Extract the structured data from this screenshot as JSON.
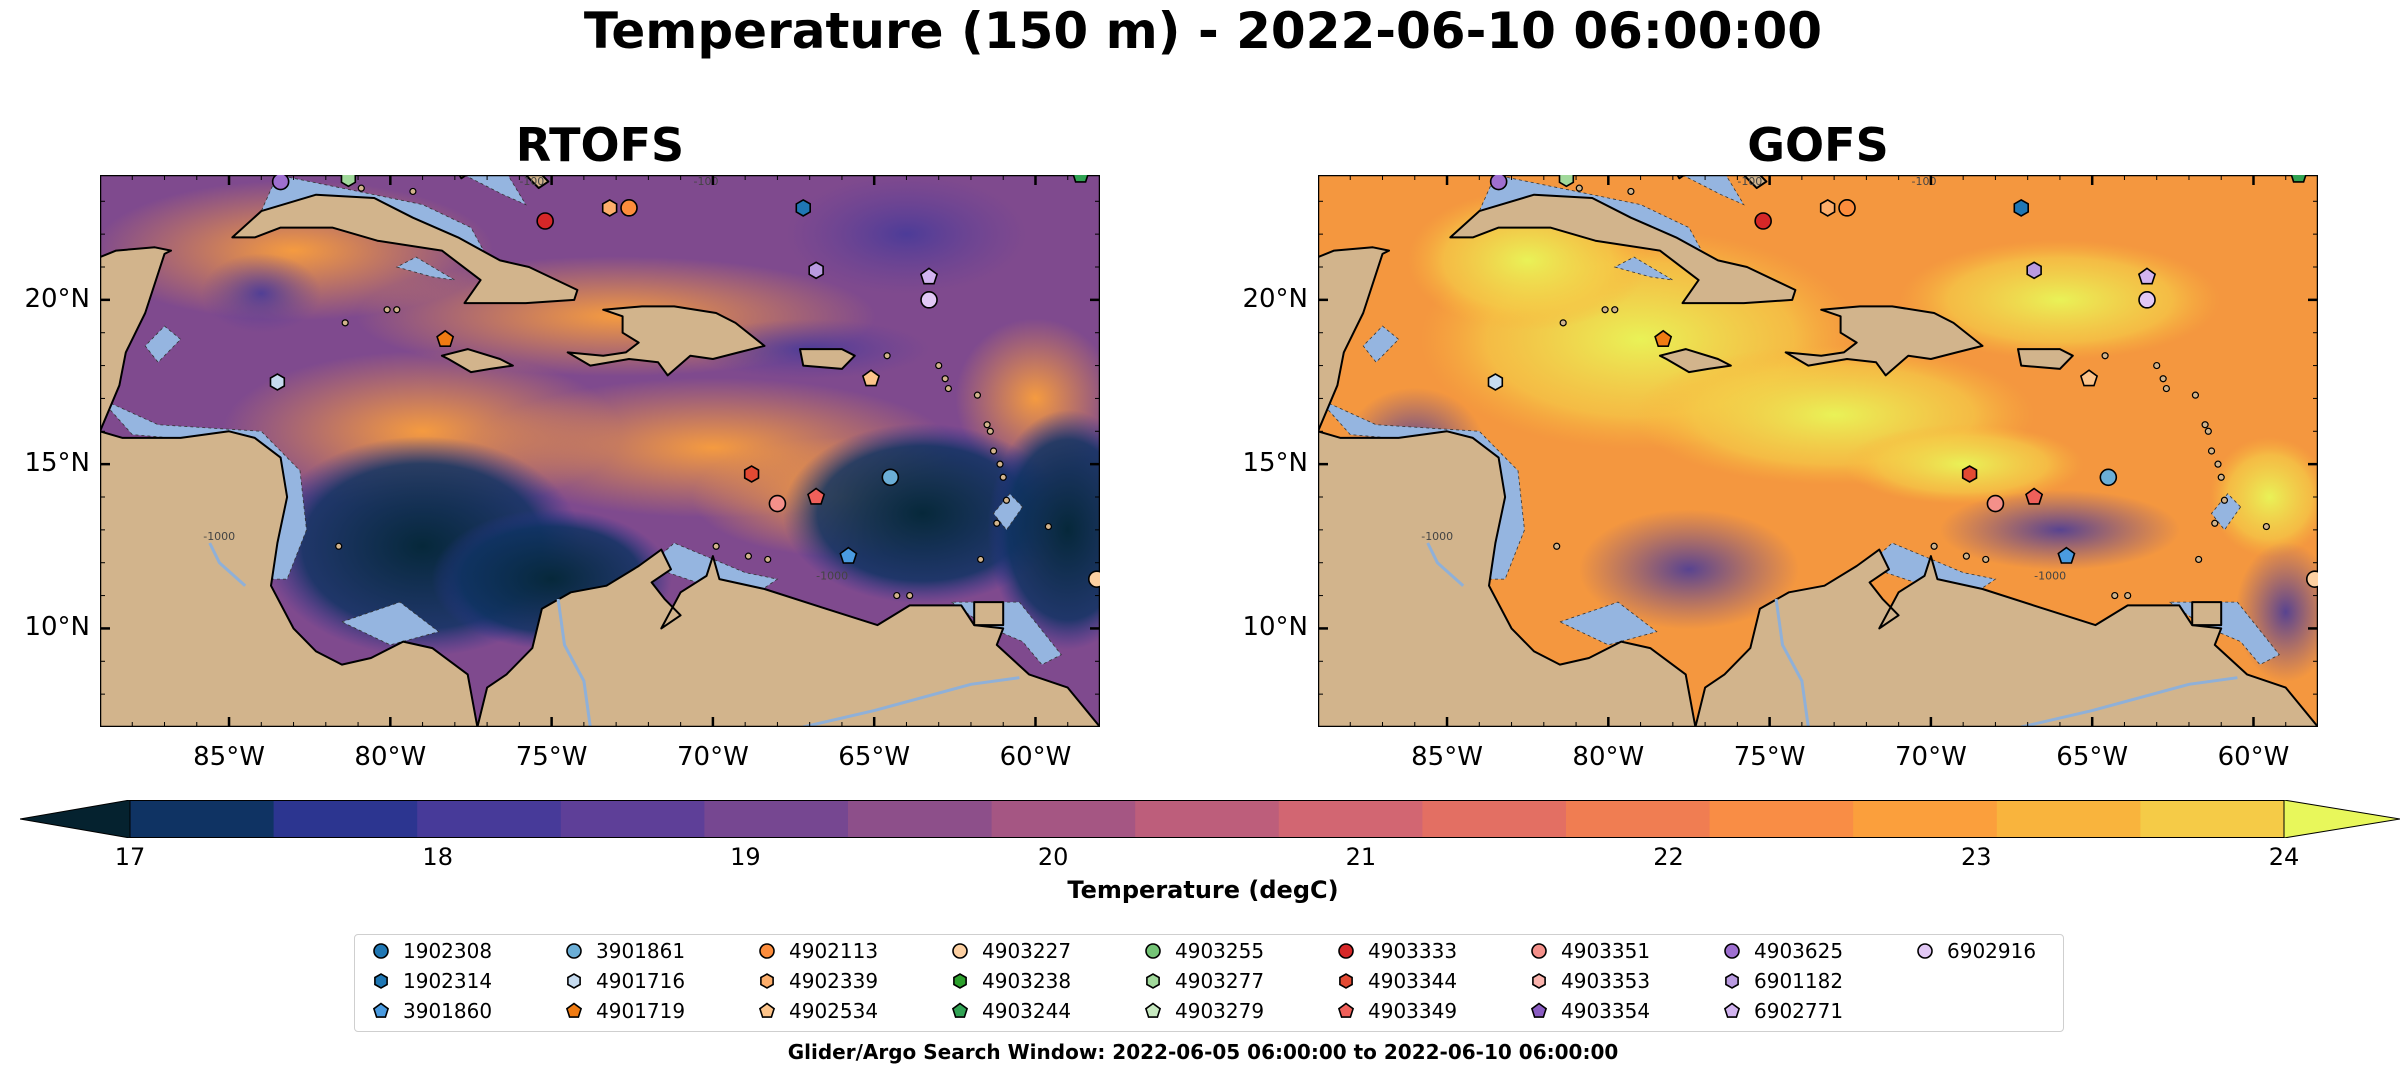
{
  "title": "Temperature (150 m) - 2022-06-10 06:00:00",
  "panels": [
    {
      "title": "RTOFS"
    },
    {
      "title": "GOFS"
    }
  ],
  "axes": {
    "lon_ticks": [
      "85°W",
      "80°W",
      "75°W",
      "70°W",
      "65°W",
      "60°W"
    ],
    "lat_ticks": [
      "20°N",
      "15°N",
      "10°N"
    ],
    "lon_range": [
      -89,
      -58
    ],
    "lat_range": [
      7,
      23.8
    ]
  },
  "colorbar": {
    "label": "Temperature (degC)",
    "ticks": [
      "17",
      "18",
      "19",
      "20",
      "21",
      "22",
      "23",
      "24"
    ],
    "colors": [
      "#06283a",
      "#0f3363",
      "#2c3590",
      "#473a99",
      "#5e3f98",
      "#764791",
      "#8d4f8a",
      "#a55683",
      "#bd5e7b",
      "#d26672",
      "#e36f63",
      "#f07d52",
      "#f98d45",
      "#fb9f3c",
      "#f9b43d",
      "#f5cb47",
      "#e9f257"
    ],
    "under_color": "#05222f",
    "over_color": "#e8f75b"
  },
  "legend": {
    "items": [
      {
        "id": "1902308",
        "marker": "circle",
        "color": "#1f77b4"
      },
      {
        "id": "1902314",
        "marker": "hexagon",
        "color": "#1f77b4"
      },
      {
        "id": "3901860",
        "marker": "pentagon",
        "color": "#4a9be0"
      },
      {
        "id": "3901861",
        "marker": "circle",
        "color": "#6baed6"
      },
      {
        "id": "4901716",
        "marker": "hexagon",
        "color": "#c6dbef"
      },
      {
        "id": "4901719",
        "marker": "pentagon",
        "color": "#f07b12"
      },
      {
        "id": "4902113",
        "marker": "circle",
        "color": "#fd8d3c"
      },
      {
        "id": "4902339",
        "marker": "hexagon",
        "color": "#fdae6b"
      },
      {
        "id": "4902534",
        "marker": "pentagon",
        "color": "#fdc48a"
      },
      {
        "id": "4903227",
        "marker": "circle",
        "color": "#fdd0a2"
      },
      {
        "id": "4903238",
        "marker": "hexagon",
        "color": "#2ca02c"
      },
      {
        "id": "4903244",
        "marker": "pentagon",
        "color": "#31a354"
      },
      {
        "id": "4903255",
        "marker": "circle",
        "color": "#74c476"
      },
      {
        "id": "4903277",
        "marker": "hexagon",
        "color": "#a1d99b"
      },
      {
        "id": "4903279",
        "marker": "pentagon",
        "color": "#c7e9c0"
      },
      {
        "id": "4903333",
        "marker": "circle",
        "color": "#d62728"
      },
      {
        "id": "4903344",
        "marker": "hexagon",
        "color": "#e34a33"
      },
      {
        "id": "4903349",
        "marker": "pentagon",
        "color": "#f0605a"
      },
      {
        "id": "4903351",
        "marker": "circle",
        "color": "#f4908a"
      },
      {
        "id": "4903353",
        "marker": "hexagon",
        "color": "#fbb4ae"
      },
      {
        "id": "4903354",
        "marker": "pentagon",
        "color": "#8a5cc2"
      },
      {
        "id": "4903625",
        "marker": "circle",
        "color": "#9e6fd0"
      },
      {
        "id": "6901182",
        "marker": "hexagon",
        "color": "#b99ae0"
      },
      {
        "id": "6902771",
        "marker": "pentagon",
        "color": "#d2b4f0"
      },
      {
        "id": "6902916",
        "marker": "circle",
        "color": "#e2c8f5"
      }
    ]
  },
  "footer": "Glider/Argo Search Window: 2022-06-05 06:00:00 to 2022-06-10 06:00:00",
  "contour_labels": [
    "-100",
    "-1000"
  ],
  "map_colors": {
    "land": "#d2b48c",
    "shallow": "#95b5e0",
    "river": "#8fb0d8",
    "coast": "#000000"
  },
  "platforms": [
    {
      "lon": -83.4,
      "lat": 23.6,
      "marker": "circle",
      "color": "#9e6fd0"
    },
    {
      "lon": -81.3,
      "lat": 23.7,
      "marker": "hexagon",
      "color": "#a1d99b"
    },
    {
      "lon": -75.2,
      "lat": 22.4,
      "marker": "circle",
      "color": "#d62728"
    },
    {
      "lon": -73.2,
      "lat": 22.8,
      "marker": "hexagon",
      "color": "#fdae6b"
    },
    {
      "lon": -72.6,
      "lat": 22.8,
      "marker": "circle",
      "color": "#fd8d3c"
    },
    {
      "lon": -67.2,
      "lat": 22.8,
      "marker": "hexagon",
      "color": "#1f77b4"
    },
    {
      "lon": -66.8,
      "lat": 20.9,
      "marker": "hexagon",
      "color": "#b99ae0"
    },
    {
      "lon": -63.3,
      "lat": 20.7,
      "marker": "pentagon",
      "color": "#d2b4f0"
    },
    {
      "lon": -63.3,
      "lat": 20.0,
      "marker": "circle",
      "color": "#e2c8f5"
    },
    {
      "lon": -78.3,
      "lat": 18.8,
      "marker": "pentagon",
      "color": "#f07b12"
    },
    {
      "lon": -83.5,
      "lat": 17.5,
      "marker": "hexagon",
      "color": "#c6dbef"
    },
    {
      "lon": -65.1,
      "lat": 17.6,
      "marker": "pentagon",
      "color": "#fdc48a"
    },
    {
      "lon": -68.8,
      "lat": 14.7,
      "marker": "hexagon",
      "color": "#e34a33"
    },
    {
      "lon": -68.0,
      "lat": 13.8,
      "marker": "circle",
      "color": "#f4908a"
    },
    {
      "lon": -66.8,
      "lat": 14.0,
      "marker": "pentagon",
      "color": "#f0605a"
    },
    {
      "lon": -64.5,
      "lat": 14.6,
      "marker": "circle",
      "color": "#6baed6"
    },
    {
      "lon": -65.8,
      "lat": 12.2,
      "marker": "pentagon",
      "color": "#4a9be0"
    },
    {
      "lon": -58.1,
      "lat": 11.5,
      "marker": "circle",
      "color": "#fdd0a2"
    },
    {
      "lon": -58.6,
      "lat": 23.8,
      "marker": "pentagon",
      "color": "#31a354"
    }
  ]
}
